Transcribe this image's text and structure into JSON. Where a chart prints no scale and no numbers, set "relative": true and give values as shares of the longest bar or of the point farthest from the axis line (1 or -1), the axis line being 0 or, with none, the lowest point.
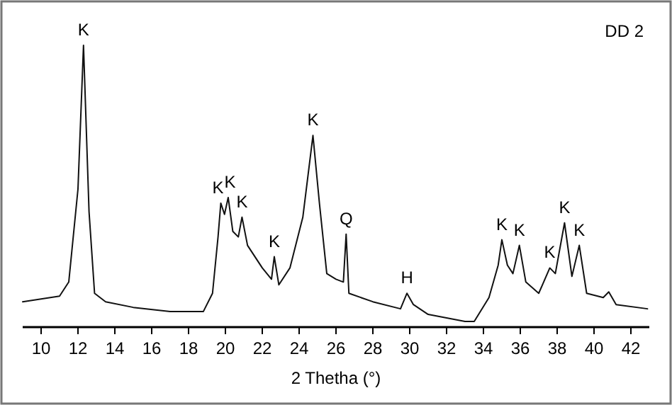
{
  "chart_data": {
    "type": "line",
    "title": "DD 2",
    "xlabel": "2 Thetha (°)",
    "relative": true,
    "color": "#111111",
    "xlim": [
      9,
      43
    ],
    "xticks": [
      10,
      12,
      14,
      16,
      18,
      20,
      22,
      24,
      26,
      28,
      30,
      32,
      34,
      36,
      38,
      40,
      42
    ],
    "x": [
      9,
      10,
      11,
      11.5,
      12,
      12.3,
      12.6,
      12.9,
      13.5,
      15,
      17,
      18.8,
      19.3,
      19.6,
      19.75,
      19.95,
      20.15,
      20.4,
      20.7,
      20.9,
      21.2,
      22,
      22.5,
      22.65,
      22.9,
      23.5,
      24.2,
      24.75,
      25.1,
      25.5,
      26,
      26.4,
      26.55,
      26.7,
      28,
      29.5,
      29.85,
      30.2,
      31,
      33,
      33.5,
      34.3,
      34.8,
      35,
      35.3,
      35.6,
      35.95,
      36.3,
      37,
      37.6,
      37.9,
      38.4,
      38.8,
      39.2,
      39.6,
      40.5,
      40.8,
      41.2,
      42.9
    ],
    "values": [
      0.09,
      0.1,
      0.11,
      0.16,
      0.49,
      1,
      0.41,
      0.12,
      0.09,
      0.07,
      0.055,
      0.055,
      0.12,
      0.32,
      0.44,
      0.4,
      0.46,
      0.34,
      0.32,
      0.39,
      0.29,
      0.21,
      0.17,
      0.25,
      0.15,
      0.21,
      0.39,
      0.68,
      0.44,
      0.19,
      0.17,
      0.16,
      0.33,
      0.12,
      0.09,
      0.065,
      0.12,
      0.08,
      0.045,
      0.02,
      0.02,
      0.105,
      0.22,
      0.31,
      0.22,
      0.19,
      0.29,
      0.16,
      0.12,
      0.21,
      0.19,
      0.37,
      0.18,
      0.29,
      0.12,
      0.105,
      0.125,
      0.08,
      0.065
    ],
    "annotations": [
      {
        "text": "K",
        "x": 12.3,
        "y": 1
      },
      {
        "text": "K",
        "x": 19.6,
        "y": 0.44
      },
      {
        "text": "K",
        "x": 20.25,
        "y": 0.46
      },
      {
        "text": "K",
        "x": 20.9,
        "y": 0.39
      },
      {
        "text": "K",
        "x": 22.65,
        "y": 0.25
      },
      {
        "text": "K",
        "x": 24.75,
        "y": 0.68
      },
      {
        "text": "Q",
        "x": 26.55,
        "y": 0.33
      },
      {
        "text": "H",
        "x": 29.85,
        "y": 0.12
      },
      {
        "text": "K",
        "x": 35,
        "y": 0.31
      },
      {
        "text": "K",
        "x": 35.95,
        "y": 0.29
      },
      {
        "text": "K",
        "x": 37.6,
        "y": 0.21
      },
      {
        "text": "K",
        "x": 38.4,
        "y": 0.37
      },
      {
        "text": "K",
        "x": 39.2,
        "y": 0.29
      }
    ]
  }
}
